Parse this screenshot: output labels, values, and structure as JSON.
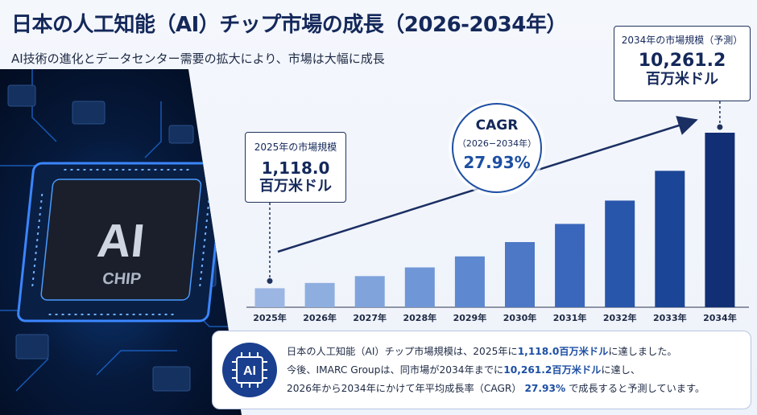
{
  "header": {
    "title": "日本の人工知能（AI）チップ市場の成長（2026-2034年）",
    "subtitle": "AI技術の進化とデータセンター需要の拡大により、市場は大幅に成長"
  },
  "chip_image": {
    "chip_text_main": "AI",
    "chip_text_sub": "CHIP"
  },
  "callouts": {
    "start": {
      "label": "2025年の市場規模",
      "value": "1,118.0",
      "unit": "百万米ドル"
    },
    "end": {
      "label": "2034年の市場規模（予測）",
      "value": "10,261.2",
      "unit": "百万米ドル"
    }
  },
  "cagr": {
    "label": "CAGR",
    "period": "（2026−2034年）",
    "value": "27.93%"
  },
  "summary": {
    "badge_text": "AI",
    "line1_a": "日本の人工知能（AI）チップ市場規模は、2025年に",
    "line1_hl": "1,118.0百万米ドル",
    "line1_b": "に達しました。",
    "line2_a": "今後、IMARC Groupは、同市場が2034年までに",
    "line2_hl": "10,261.2百万米ドル",
    "line2_b": "に達し、",
    "line3_a": "2026年から2034年にかけて年平均成長率（CAGR）",
    "line3_hl": "27.93%",
    "line3_b": "で成長すると予測しています。"
  },
  "chart_data": {
    "type": "bar",
    "title": "日本の人工知能（AI）チップ市場の成長（2026-2034年）",
    "categories": [
      "2025年",
      "2026年",
      "2027年",
      "2028年",
      "2029年",
      "2030年",
      "2031年",
      "2032年",
      "2033年",
      "2034年"
    ],
    "values": [
      1118.0,
      1430,
      1830,
      2340,
      2990,
      3830,
      4900,
      6270,
      8020,
      10261.2
    ],
    "unit": "百万米ドル",
    "xlabel": "",
    "ylabel": "",
    "ylim": [
      0,
      10261.2
    ],
    "grid": false,
    "legend": "none",
    "colors": [
      "#9cb6e4",
      "#8eaee0",
      "#80a3dc",
      "#6f96d6",
      "#5e88cf",
      "#4c78c6",
      "#3a67bb",
      "#2856ab",
      "#1b4596",
      "#122f75"
    ],
    "trend_arrow_color": "#1b2f63"
  }
}
